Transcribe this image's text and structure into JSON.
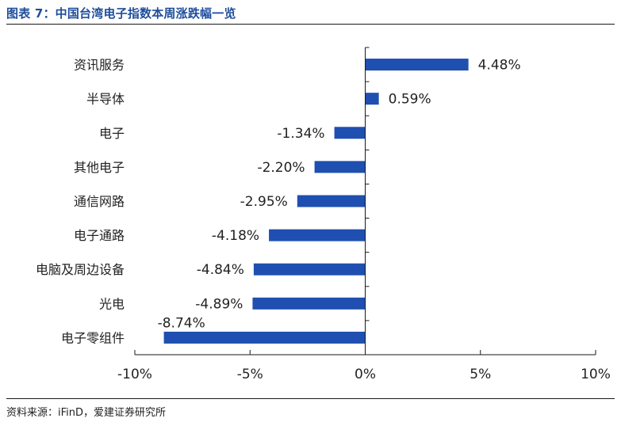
{
  "figure": {
    "title": "图表 7：中国台湾电子指数本周涨跌幅一览",
    "source": "资料来源：iFinD，爱建证券研究所"
  },
  "colors": {
    "bar": "#1f4fb0",
    "title": "#1f4e9c",
    "axis": "#1a1a1a",
    "text": "#222222"
  },
  "chart_data": {
    "type": "bar",
    "orientation": "horizontal",
    "categories": [
      "资讯服务",
      "半导体",
      "电子",
      "其他电子",
      "通信网路",
      "电子通路",
      "电脑及周边设备",
      "光电",
      "电子零组件"
    ],
    "values": [
      4.48,
      0.59,
      -1.34,
      -2.2,
      -2.95,
      -4.18,
      -4.84,
      -4.89,
      -8.74
    ],
    "value_labels": [
      "4.48%",
      "0.59%",
      "-1.34%",
      "-2.20%",
      "-2.95%",
      "-4.18%",
      "-4.84%",
      "-4.89%",
      "-8.74%"
    ],
    "xlim": [
      -10,
      10
    ],
    "xticks": [
      -10,
      -5,
      0,
      5,
      10
    ],
    "xtick_labels": [
      "-10%",
      "-5%",
      "0%",
      "5%",
      "10%"
    ],
    "grid": false,
    "legend": "none",
    "title": "",
    "xlabel": "",
    "ylabel": ""
  }
}
